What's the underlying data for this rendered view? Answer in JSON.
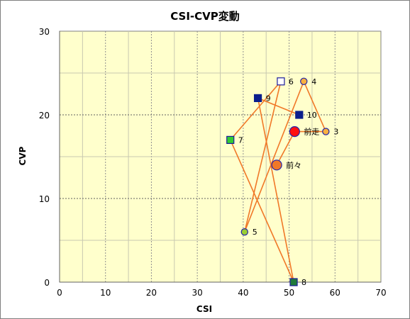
{
  "chart_data": {
    "type": "scatter",
    "title": "CSI-CVP変動",
    "xlabel": "CSI",
    "ylabel": "CVP",
    "xlim": [
      0,
      70
    ],
    "ylim": [
      0,
      30
    ],
    "xticks": [
      0,
      10,
      20,
      30,
      40,
      50,
      60,
      70
    ],
    "yticks": [
      0,
      10,
      20,
      30
    ],
    "grid": true,
    "background": "#ffffcc",
    "line_color": "#f07828",
    "points": [
      {
        "label": "前々",
        "x": 47.3,
        "y": 14.0,
        "marker": "circle-large",
        "fill": "#f07828",
        "stroke": "#2222aa"
      },
      {
        "label": "前走",
        "x": 51.2,
        "y": 18.0,
        "marker": "circle-large",
        "fill": "#ff1010",
        "stroke": "#2222aa"
      },
      {
        "label": "3",
        "x": 58.0,
        "y": 18.0,
        "marker": "circle",
        "fill": "#f8b040",
        "stroke": "#2222aa"
      },
      {
        "label": "4",
        "x": 53.2,
        "y": 24.0,
        "marker": "circle",
        "fill": "#f8b040",
        "stroke": "#2222aa"
      },
      {
        "label": "5",
        "x": 40.3,
        "y": 6.0,
        "marker": "circle",
        "fill": "#9acd32",
        "stroke": "#2222aa"
      },
      {
        "label": "6",
        "x": 48.2,
        "y": 24.0,
        "marker": "square",
        "fill": "#ffffff",
        "stroke": "#1a1a9a"
      },
      {
        "label": "7",
        "x": 37.2,
        "y": 17.0,
        "marker": "square",
        "fill": "#33cc33",
        "stroke": "#1a1a9a"
      },
      {
        "label": "8",
        "x": 51.0,
        "y": 0.0,
        "marker": "square",
        "fill": "#1f7a3a",
        "stroke": "#1a1a9a"
      },
      {
        "label": "9",
        "x": 43.2,
        "y": 22.0,
        "marker": "square",
        "fill": "#0a1e8c",
        "stroke": "#0a1e8c"
      },
      {
        "label": "10",
        "x": 52.2,
        "y": 20.0,
        "marker": "square",
        "fill": "#0a1e8c",
        "stroke": "#0a1e8c"
      }
    ],
    "path_order": [
      "前々",
      "前走",
      "3",
      "4",
      "5",
      "6",
      "7",
      "8",
      "9",
      "10"
    ]
  }
}
